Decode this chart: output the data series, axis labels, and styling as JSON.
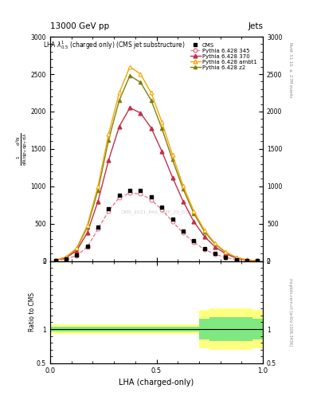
{
  "title_left": "13000 GeV pp",
  "title_right": "Jets",
  "xlabel": "LHA (charged-only)",
  "ylabel_main": "$\\frac{1}{\\mathrm{d}N/\\mathrm{d}p_T} \\frac{\\mathrm{d}^2 N}{\\mathrm{d}p_T\\,\\mathrm{d}\\lambda}$",
  "ylabel_ratio": "Ratio to CMS",
  "plot_label": "LHA $\\lambda^1_{0.5}$ (charged only) (CMS jet substructure)",
  "rivet_label": "Rivet 3.1.10, $\\geq$ 2.7M events",
  "mcplots_label": "mcplots.cern.ch [arXiv:1306.3436]",
  "watermark": "CMS_2021_PAS_SMP_20_010",
  "cms_color": "#000000",
  "p6_345_color": "#e8748a",
  "p6_370_color": "#c0304a",
  "p6_ambt1_color": "#f0a800",
  "p6_z2_color": "#808010",
  "x_centers": [
    0.025,
    0.075,
    0.125,
    0.175,
    0.225,
    0.275,
    0.325,
    0.375,
    0.425,
    0.475,
    0.525,
    0.575,
    0.625,
    0.675,
    0.725,
    0.775,
    0.825,
    0.875,
    0.925,
    0.975
  ],
  "cms_y": [
    10,
    30,
    80,
    200,
    450,
    700,
    880,
    950,
    940,
    860,
    720,
    560,
    400,
    270,
    170,
    100,
    52,
    22,
    8,
    2
  ],
  "p6_345_y": [
    8,
    28,
    75,
    190,
    430,
    670,
    850,
    910,
    900,
    820,
    690,
    530,
    375,
    252,
    158,
    92,
    48,
    20,
    7,
    2
  ],
  "p6_370_y": [
    12,
    45,
    140,
    380,
    800,
    1350,
    1800,
    2050,
    1980,
    1780,
    1470,
    1120,
    800,
    530,
    330,
    190,
    98,
    40,
    14,
    4
  ],
  "p6_ambt1_y": [
    14,
    55,
    175,
    480,
    1000,
    1700,
    2250,
    2600,
    2500,
    2250,
    1860,
    1420,
    1010,
    670,
    415,
    238,
    122,
    50,
    17,
    5
  ],
  "p6_z2_y": [
    13,
    52,
    165,
    455,
    950,
    1620,
    2150,
    2480,
    2390,
    2150,
    1775,
    1355,
    965,
    640,
    396,
    228,
    117,
    48,
    16,
    4
  ],
  "ylim_main": [
    0,
    3000
  ],
  "yticks_main": [
    0,
    500,
    1000,
    1500,
    2000,
    2500,
    3000
  ],
  "ylim_ratio": [
    0.5,
    2.0
  ],
  "yticks_ratio": [
    0.5,
    1.0,
    2.0
  ],
  "xlim": [
    0.0,
    1.0
  ],
  "xticks": [
    0.0,
    0.5,
    1.0
  ],
  "ratio_edges": [
    0.0,
    0.05,
    0.1,
    0.15,
    0.2,
    0.25,
    0.3,
    0.35,
    0.4,
    0.45,
    0.5,
    0.55,
    0.6,
    0.65,
    0.7,
    0.75,
    0.8,
    0.85,
    0.9,
    0.95,
    1.0
  ],
  "ratio_green_lo": [
    0.97,
    0.97,
    0.97,
    0.97,
    0.97,
    0.97,
    0.97,
    0.97,
    0.97,
    0.97,
    0.97,
    0.97,
    0.97,
    0.97,
    0.85,
    0.82,
    0.82,
    0.82,
    0.82,
    0.85
  ],
  "ratio_green_hi": [
    1.03,
    1.03,
    1.03,
    1.03,
    1.03,
    1.03,
    1.03,
    1.03,
    1.03,
    1.03,
    1.03,
    1.03,
    1.03,
    1.03,
    1.15,
    1.18,
    1.18,
    1.18,
    1.18,
    1.15
  ],
  "ratio_yellow_lo": [
    0.93,
    0.93,
    0.93,
    0.93,
    0.93,
    0.93,
    0.93,
    0.93,
    0.93,
    0.93,
    0.93,
    0.93,
    0.93,
    0.93,
    0.72,
    0.7,
    0.7,
    0.7,
    0.7,
    0.72
  ],
  "ratio_yellow_hi": [
    1.07,
    1.07,
    1.07,
    1.07,
    1.07,
    1.07,
    1.07,
    1.07,
    1.07,
    1.07,
    1.07,
    1.07,
    1.07,
    1.07,
    1.28,
    1.3,
    1.3,
    1.3,
    1.3,
    1.28
  ]
}
